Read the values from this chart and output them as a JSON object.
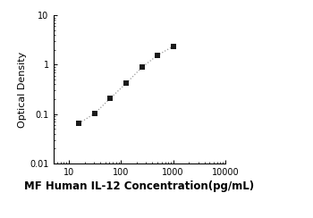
{
  "x_data": [
    15.625,
    31.25,
    62.5,
    125,
    250,
    500,
    1000
  ],
  "y_data": [
    0.065,
    0.103,
    0.21,
    0.42,
    0.88,
    1.55,
    2.35
  ],
  "xlabel": "MF Human IL-12 Concentration(pg/mL)",
  "ylabel": "Optical Density",
  "xlim": [
    5,
    10000
  ],
  "ylim": [
    0.01,
    10
  ],
  "xticks": [
    10,
    100,
    1000,
    10000
  ],
  "yticks": [
    0.01,
    0.1,
    1,
    10
  ],
  "marker": "s",
  "marker_color": "#1a1a1a",
  "line_color": "#999999",
  "marker_size": 4.5,
  "background_color": "#ffffff",
  "xlabel_fontsize": 8.5,
  "ylabel_fontsize": 8,
  "tick_fontsize": 7,
  "xlabel_fontweight": "bold"
}
